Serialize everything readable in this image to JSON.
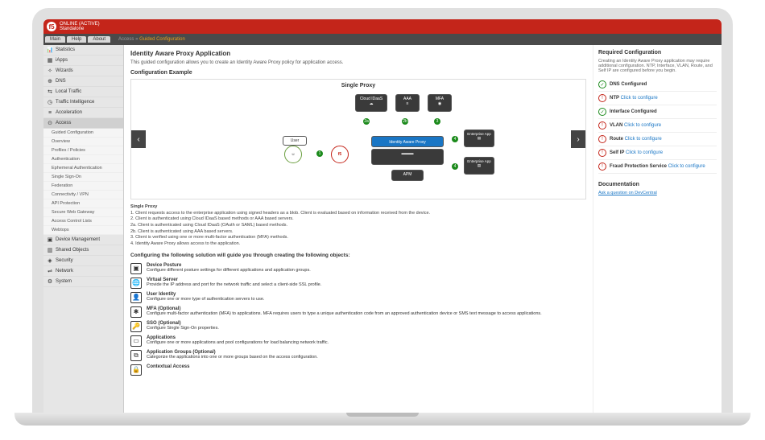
{
  "header": {
    "status": "ONLINE (ACTIVE)",
    "mode": "Standalone"
  },
  "tabs": [
    "Main",
    "Help",
    "About"
  ],
  "breadcrumb": {
    "root": "Access",
    "current": "Guided Configuration"
  },
  "sidebar": {
    "items": [
      {
        "label": "Statistics",
        "icon": "📊"
      },
      {
        "label": "iApps",
        "icon": "▦"
      },
      {
        "label": "Wizards",
        "icon": "✧"
      },
      {
        "label": "DNS",
        "icon": "⊕"
      },
      {
        "label": "Local Traffic",
        "icon": "⇆"
      },
      {
        "label": "Traffic Intelligence",
        "icon": "◷"
      },
      {
        "label": "Acceleration",
        "icon": "≡"
      },
      {
        "label": "Access",
        "icon": "⊙",
        "selected": true
      }
    ],
    "sub": [
      "Guided Configuration",
      "Overview",
      "Profiles / Policies",
      "Authentication",
      "Ephemeral Authentication",
      "Single Sign-On",
      "Federation",
      "Connectivity / VPN",
      "API Protection",
      "Secure Web Gateway",
      "Access Control Lists",
      "Webtops"
    ],
    "items2": [
      {
        "label": "Device Management",
        "icon": "▣"
      },
      {
        "label": "Shared Objects",
        "icon": "▥"
      },
      {
        "label": "Security",
        "icon": "◈"
      },
      {
        "label": "Network",
        "icon": "⇌"
      },
      {
        "label": "System",
        "icon": "⚙"
      }
    ]
  },
  "main": {
    "title": "Identity Aware Proxy Application",
    "intro": "This guided configuration allows you to create an Identity Aware Proxy policy for application access.",
    "section": "Configuration Example",
    "diagram": {
      "title": "Single Proxy",
      "nodes": {
        "user": "User",
        "cloud": "Cloud IDaaS",
        "aaa": "AAA",
        "mfa": "MFA",
        "iap": "Identity Aware Proxy",
        "apm": "APM",
        "e1": "Enterprise App",
        "e2": "Enterprise App",
        "f5": "f5",
        "cl": "iCloud"
      }
    },
    "steps_title": "Single Proxy",
    "steps": [
      "1. Client requests access to the enterprise application using signed headers as a blob. Client is evaluated based on information received from the device.",
      "2. Client is authenticated using Cloud IDaaS based methods or AAA based servers.",
      "2a. Client is authenticated using Cloud IDaaS (OAuth or SAML) based methods.",
      "2b. Client is authenticated using AAA based servers.",
      "3. Client is verified using one or more multi-factor authentication (MFA) methods.",
      "4. Identity Aware Proxy allows access to the application."
    ],
    "objects_header": "Configuring the following solution will guide you through creating the following objects:",
    "objects": [
      {
        "icon": "▣",
        "title": "Device Posture",
        "desc": "Configure different posture settings for different applications and application groups."
      },
      {
        "icon": "🌐",
        "title": "Virtual Server",
        "desc": "Provide the IP address and port for the network traffic and select a client-side SSL profile."
      },
      {
        "icon": "👤",
        "title": "User Identity",
        "desc": "Configure one or more type of authentication servers to use."
      },
      {
        "icon": "✱",
        "title": "MFA (Optional)",
        "desc": "Configure multi-factor authentication (MFA) to applications. MFA requires users to type a unique authentication code from an approved authentication device or SMS text message to access applications."
      },
      {
        "icon": "🔑",
        "title": "SSO (Optional)",
        "desc": "Configure Single Sign-On properties."
      },
      {
        "icon": "▭",
        "title": "Applications",
        "desc": "Configure one or more applications and pool configurations for load balancing network traffic."
      },
      {
        "icon": "⧉",
        "title": "Application Groups (Optional)",
        "desc": "Categorize the applications into one or more groups based on the access configuration."
      },
      {
        "icon": "🔒",
        "title": "Contextual Access",
        "desc": ""
      }
    ]
  },
  "right": {
    "title": "Required Configuration",
    "intro": "Creating an Identity Aware Proxy application may require additional configuration. NTP, Interface, VLAN, Route, and Self IP are configured before you begin.",
    "items": [
      {
        "ok": true,
        "label": "DNS Configured",
        "link": ""
      },
      {
        "ok": false,
        "label": "NTP",
        "link": "Click to configure"
      },
      {
        "ok": true,
        "label": "Interface Configured",
        "link": ""
      },
      {
        "ok": false,
        "label": "VLAN",
        "link": "Click to configure"
      },
      {
        "ok": false,
        "label": "Route",
        "link": "Click to configure"
      },
      {
        "ok": false,
        "label": "Self IP",
        "link": "Click to configure"
      },
      {
        "ok": false,
        "label": "Fraud Protection Service",
        "link": "Click to configure"
      }
    ],
    "doc_title": "Documentation",
    "doc_link": "Ask a question on DevCentral"
  }
}
